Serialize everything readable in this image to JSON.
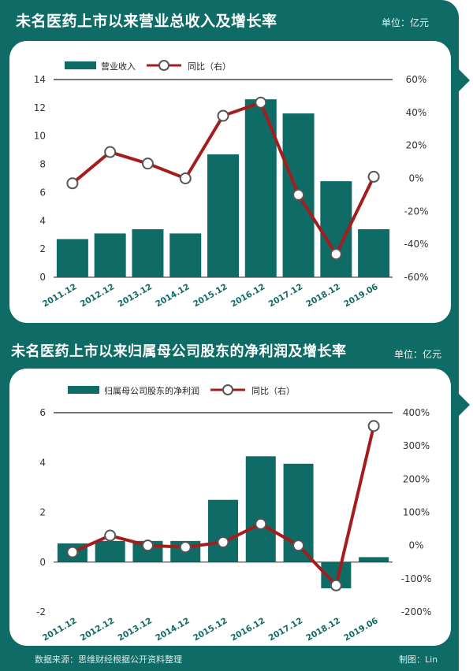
{
  "header_top": {
    "title": "未名医药上市以来营业总收入及增长率",
    "unit": "单位：亿元"
  },
  "header_bottom": {
    "title": "未名医药上市以来归属母公司股东的净利润及增长率",
    "unit": "单位：亿元"
  },
  "footer": {
    "source": "数据来源：思维财经根据公开资料整理",
    "credit": "制图：Lin"
  },
  "colors": {
    "bar": "#0e6b66",
    "line": "#a51c1c",
    "frame": "#0e6b66"
  },
  "chart_data": [
    {
      "type": "bar",
      "categories": [
        "2011.12",
        "2012.12",
        "2013.12",
        "2014.12",
        "2015.12",
        "2016.12",
        "2017.12",
        "2018.12",
        "2019.06"
      ],
      "series": [
        {
          "name": "营业收入",
          "type": "bar",
          "axis": "left",
          "values": [
            2.7,
            3.1,
            3.4,
            3.1,
            8.7,
            12.6,
            11.6,
            6.8,
            3.4
          ]
        },
        {
          "name": "同比（右）",
          "type": "line",
          "axis": "right",
          "values": [
            -3,
            16,
            9,
            0,
            38,
            46,
            -10,
            -46,
            1
          ]
        }
      ],
      "ylim_left": [
        0,
        14
      ],
      "yticks_left": [
        0,
        2,
        4,
        6,
        8,
        10,
        12,
        14
      ],
      "ylim_right": [
        -60,
        60
      ],
      "yticks_right": [
        "-60%",
        "-40%",
        "-20%",
        "0%",
        "20%",
        "40%",
        "60%"
      ],
      "legend": "top-left"
    },
    {
      "type": "bar",
      "categories": [
        "2011.12",
        "2012.12",
        "2013.12",
        "2014.12",
        "2015.12",
        "2016.12",
        "2017.12",
        "2018.12",
        "2019.06"
      ],
      "series": [
        {
          "name": "归属母公司股东的净利润",
          "type": "bar",
          "axis": "left",
          "values": [
            0.75,
            0.85,
            0.85,
            0.85,
            2.5,
            4.25,
            3.95,
            -1.05,
            0.2
          ]
        },
        {
          "name": "同比（右）",
          "type": "line",
          "axis": "right",
          "values": [
            -20,
            30,
            0,
            -5,
            10,
            65,
            0,
            -120,
            360
          ]
        }
      ],
      "ylim_left": [
        -2,
        6
      ],
      "yticks_left": [
        -2,
        0,
        2,
        4,
        6
      ],
      "ylim_right": [
        -200,
        400
      ],
      "yticks_right": [
        "-200%",
        "-100%",
        "0%",
        "100%",
        "200%",
        "300%",
        "400%"
      ],
      "legend": "top-left"
    }
  ]
}
